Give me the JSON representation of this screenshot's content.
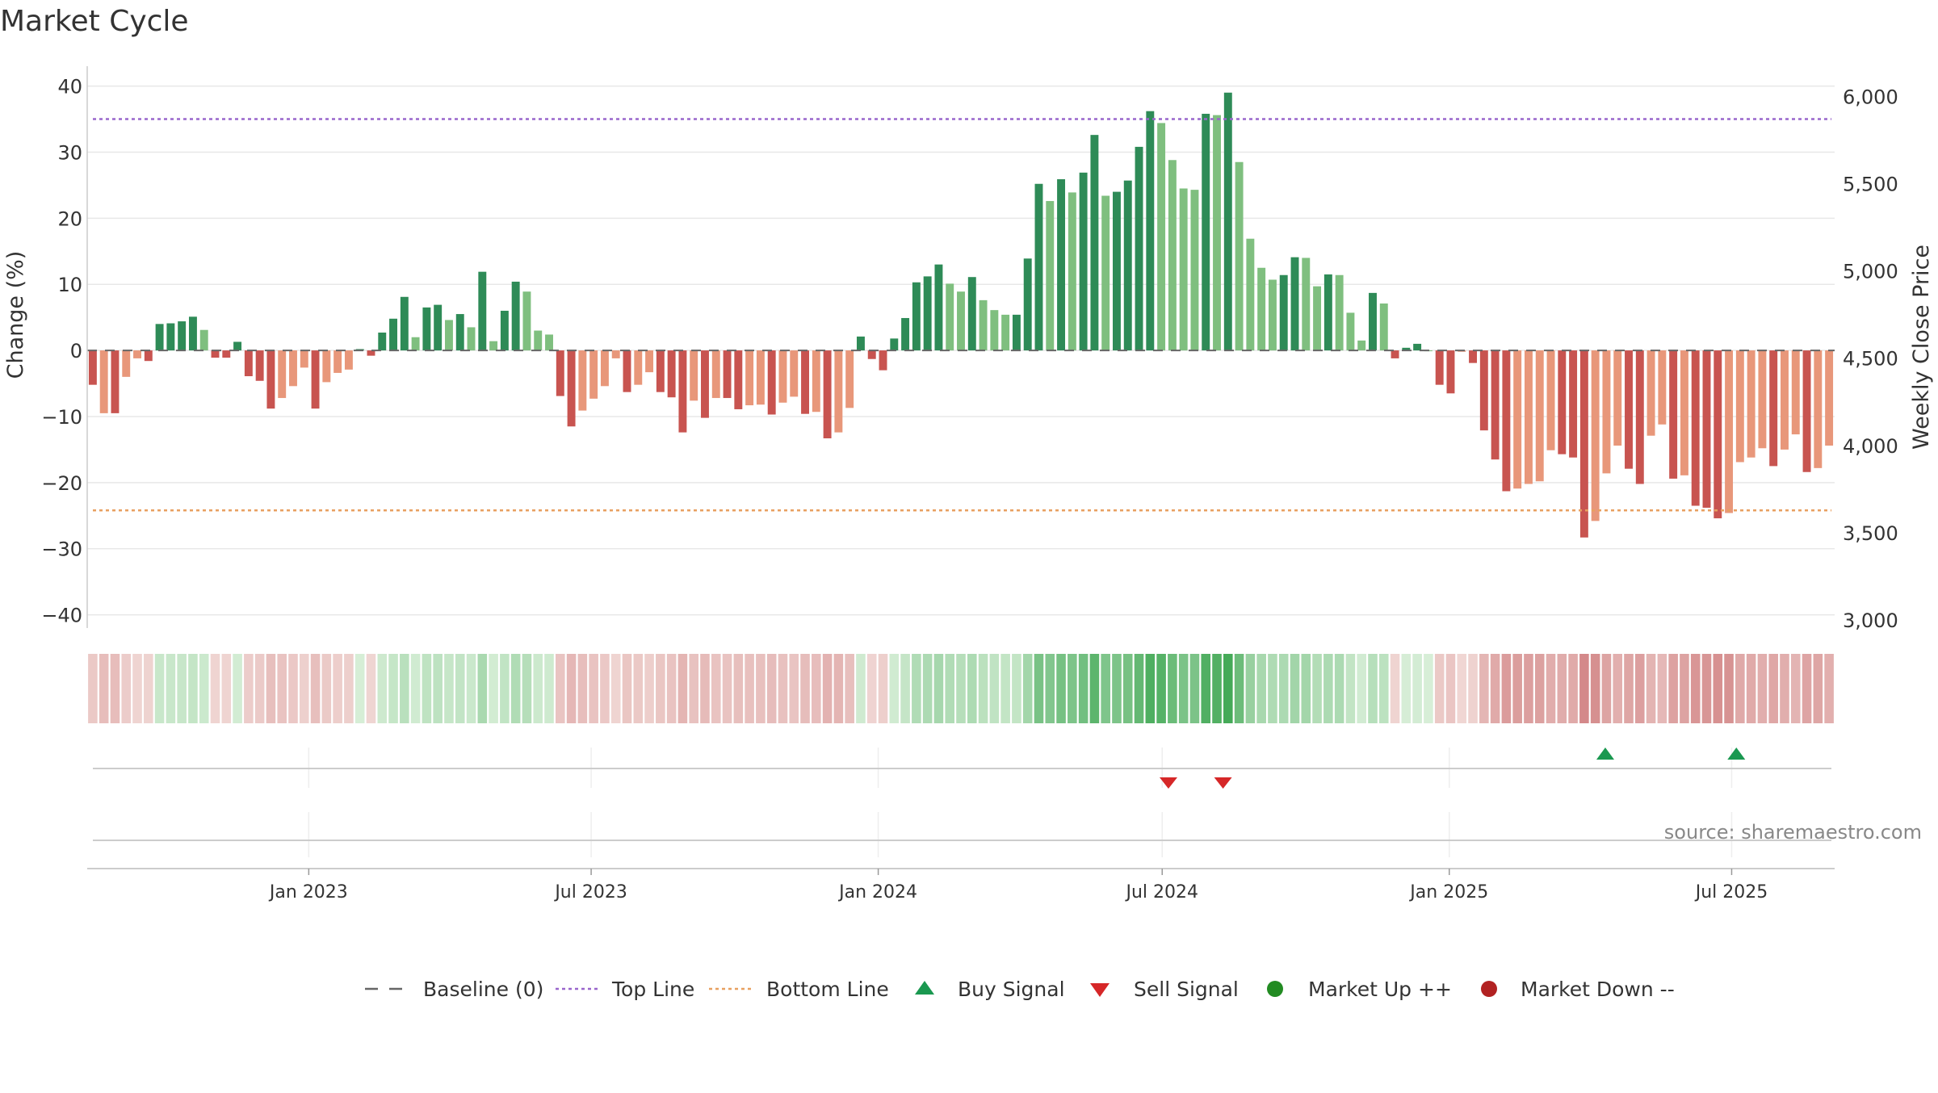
{
  "chart_data": {
    "type": "bar",
    "title": "Market Cycle",
    "ylabel": "Change (%)",
    "y2label": "Weekly Close Price",
    "ylim": [
      -42,
      43
    ],
    "y2lim": [
      3000,
      6200
    ],
    "yticks": [
      40,
      30,
      20,
      10,
      0,
      -10,
      -20,
      -30,
      -40
    ],
    "ytick_labels": [
      "40",
      "30",
      "20",
      "10",
      "0",
      "−10",
      "−20",
      "−30",
      "−40"
    ],
    "y2ticks": [
      6000,
      5500,
      5000,
      4500,
      4000,
      3500,
      3000
    ],
    "y2tick_labels": [
      "6,000",
      "5,500",
      "5,000",
      "4,500",
      "4,000",
      "3,500",
      "3,000"
    ],
    "x_start": "2022-08-12",
    "x_end": "2025-09-05",
    "xticks": [
      "2023-01-01",
      "2023-07-01",
      "2024-01-01",
      "2024-07-01",
      "2025-01-01",
      "2025-07-01"
    ],
    "xtick_labels": [
      "Jan 2023",
      "Jul 2023",
      "Jan 2024",
      "Jul 2024",
      "Jan 2025",
      "Jul 2025"
    ],
    "top_line": 35,
    "bottom_line": -24.2,
    "baseline": 0,
    "values": [
      -5.2,
      -9.5,
      -9.5,
      -4,
      -1.2,
      -1.6,
      4,
      4.1,
      4.4,
      5.1,
      3.1,
      -1.1,
      -1.1,
      1.3,
      -3.9,
      -4.6,
      -8.8,
      -7.2,
      -5.4,
      -2.6,
      -8.8,
      -4.8,
      -3.4,
      -2.9,
      0.2,
      -0.8,
      2.7,
      4.8,
      8.1,
      2,
      6.5,
      6.9,
      4.6,
      5.5,
      3.5,
      11.9,
      1.4,
      6,
      10.4,
      8.9,
      3,
      2.4,
      -6.9,
      -11.5,
      -9.1,
      -7.3,
      -5.4,
      -1.2,
      -6.3,
      -5.2,
      -3.3,
      -6.3,
      -7.1,
      -12.4,
      -7.6,
      -10.2,
      -7.2,
      -7.2,
      -8.9,
      -8.3,
      -8.2,
      -9.7,
      -7.9,
      -7,
      -9.6,
      -9.3,
      -13.3,
      -12.4,
      -8.7,
      2.1,
      -1.3,
      -3,
      1.8,
      4.9,
      10.3,
      11.2,
      13,
      10.1,
      8.9,
      11.1,
      7.6,
      6.1,
      5.4,
      5.4,
      13.9,
      25.2,
      22.6,
      25.9,
      23.9,
      26.9,
      32.6,
      23.4,
      24,
      25.7,
      30.8,
      36.2,
      34.4,
      28.8,
      24.5,
      24.3,
      35.8,
      35.6,
      39,
      28.5,
      16.9,
      12.5,
      10.7,
      11.4,
      14.1,
      14,
      9.7,
      11.5,
      11.4,
      5.7,
      1.5,
      8.7,
      7.1,
      -1.2,
      0.4,
      1,
      0,
      -5.2,
      -6.5,
      -0.2,
      -1.9,
      -12.1,
      -16.5,
      -21.3,
      -20.9,
      -20.2,
      -19.8,
      -15.1,
      -15.7,
      -16.2,
      -28.3,
      -25.8,
      -18.6,
      -14.4,
      -17.9,
      -20.2,
      -12.9,
      -11.2,
      -19.4,
      -18.9,
      -23.5,
      -23.8,
      -25.4,
      -24.6,
      -16.9,
      -16.2,
      -14.8,
      -17.5,
      -15,
      -12.7,
      -18.4,
      -17.8,
      -14.4
    ],
    "heat_row": "monthly change heat strip",
    "buy_signals": [
      "2025-04-11",
      "2025-07-04"
    ],
    "sell_signals": [
      "2024-07-05",
      "2024-08-09"
    ],
    "source": "source: sharemaestro.com",
    "legend": [
      {
        "name": "Baseline (0)",
        "marker": "dash-gray"
      },
      {
        "name": "Top Line",
        "marker": "dotted-purple"
      },
      {
        "name": "Bottom Line",
        "marker": "dotted-orange"
      },
      {
        "name": "Buy Signal",
        "marker": "triangle-up-green"
      },
      {
        "name": "Sell Signal",
        "marker": "triangle-down-red"
      },
      {
        "name": "Market Up ++",
        "marker": "circle-green"
      },
      {
        "name": "Market Down --",
        "marker": "circle-red"
      }
    ],
    "legend_position": "bottom-center",
    "grid": true,
    "colors": {
      "up_dark": "#2e8b57",
      "up_light": "#7fbf7f",
      "down_dark": "#c85450",
      "down_light": "#e8977a",
      "top_line": "#9966cc",
      "bottom_line": "#e8a060",
      "buy": "#1a9850",
      "sell": "#d62728",
      "market_up": "#228b22",
      "market_down": "#b22222",
      "baseline": "#666666",
      "grid": "#e8e8e8"
    }
  }
}
